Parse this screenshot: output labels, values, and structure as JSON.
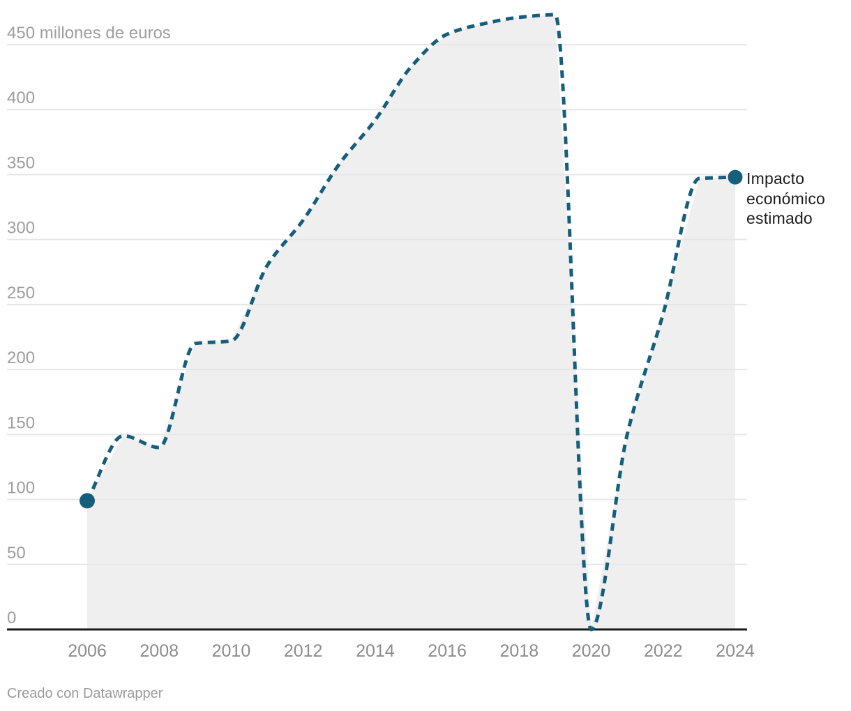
{
  "chart": {
    "series_label": "Impacto económico estimado",
    "footer": "Creado con Datawrapper"
  },
  "colors": {
    "line": "#155e7c",
    "area_fill": "#efefef",
    "grid": "#e6e6e6",
    "axis": "#1a1a1a",
    "y_tick_text": "#9e9e9e",
    "x_tick_text": "#8c8c8c",
    "series_label_text": "#1d1d1d",
    "footer_text": "#9a9a9a",
    "background": "#ffffff"
  },
  "chart_data": {
    "type": "line",
    "line_style": "dashed",
    "area_fill": true,
    "title": "",
    "xlabel": "",
    "ylabel": "millones de euros",
    "x": [
      2006,
      2007,
      2008,
      2009,
      2010,
      2011,
      2012,
      2013,
      2014,
      2015,
      2016,
      2017,
      2018,
      2019,
      2020,
      2021,
      2022,
      2023,
      2024
    ],
    "series": [
      {
        "name": "Impacto económico estimado",
        "values": [
          99,
          149,
          140,
          220,
          222,
          280,
          315,
          358,
          392,
          433,
          458,
          466,
          471,
          473,
          0,
          150,
          243,
          347,
          348
        ]
      }
    ],
    "x_tick_labels": [
      "2006",
      "2008",
      "2010",
      "2012",
      "2014",
      "2016",
      "2018",
      "2020",
      "2022",
      "2024"
    ],
    "y_ticks": [
      0,
      50,
      100,
      150,
      200,
      250,
      300,
      350,
      400
    ],
    "y_top_tick_value": 450,
    "y_top_tick_label": "450 millones de euros",
    "ylim": [
      0,
      475
    ],
    "grid": true,
    "legend_position": "right-of-last-point",
    "markers": [
      "first-point",
      "last-point"
    ]
  }
}
